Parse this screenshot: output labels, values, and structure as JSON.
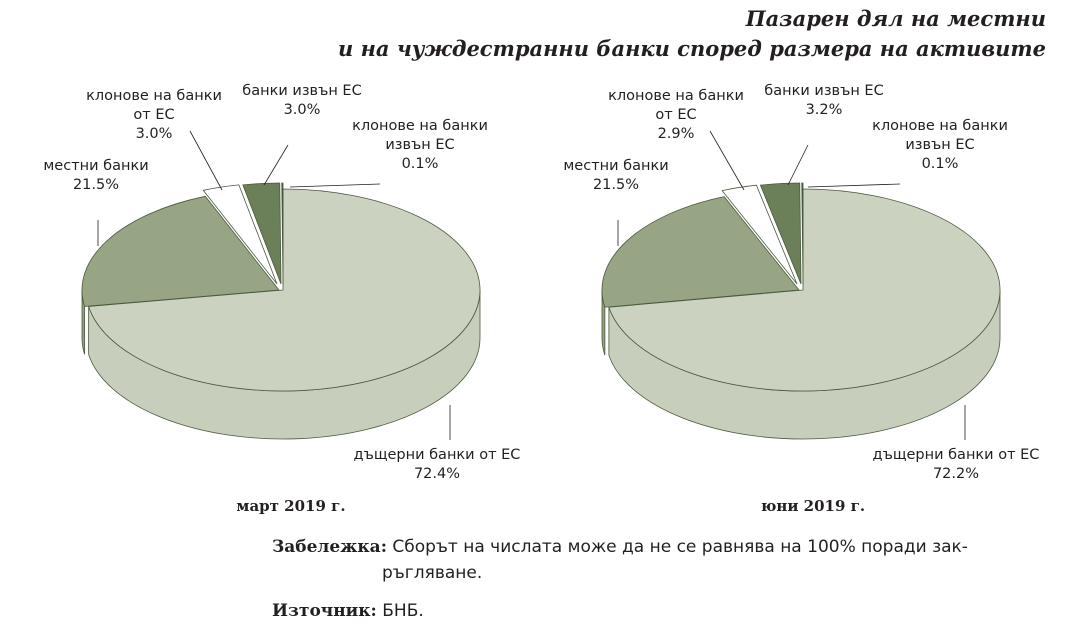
{
  "title_line1": "Пазарен дял на местни",
  "title_line2": "и на чуждестранни банки според размера на активите",
  "colors": {
    "subsidiaries": "#cbd3c0",
    "local": "#97a584",
    "branches_eu": "#ffffff",
    "outside_eu": "#6b8059",
    "branches_outside_eu": "#3f5233",
    "outline": "#4a5a3e"
  },
  "chart_data": [
    {
      "type": "pie",
      "title": "март 2019 г.",
      "slices": [
        {
          "label_lines": [
            "дъщерни банки от ЕС"
          ],
          "pct_label": "72.4%",
          "value": 72.4,
          "color_key": "subsidiaries"
        },
        {
          "label_lines": [
            "местни банки"
          ],
          "pct_label": "21.5%",
          "value": 21.5,
          "color_key": "local"
        },
        {
          "label_lines": [
            "клонове на банки",
            "от ЕС"
          ],
          "pct_label": "3.0%",
          "value": 3.0,
          "color_key": "branches_eu"
        },
        {
          "label_lines": [
            "банки извън ЕС"
          ],
          "pct_label": "3.0%",
          "value": 3.0,
          "color_key": "outside_eu"
        },
        {
          "label_lines": [
            "клонове на банки",
            "извън ЕС"
          ],
          "pct_label": "0.1%",
          "value": 0.1,
          "color_key": "branches_outside_eu"
        }
      ]
    },
    {
      "type": "pie",
      "title": "юни 2019 г.",
      "slices": [
        {
          "label_lines": [
            "дъщерни банки от ЕС"
          ],
          "pct_label": "72.2%",
          "value": 72.2,
          "color_key": "subsidiaries"
        },
        {
          "label_lines": [
            "местни банки"
          ],
          "pct_label": "21.5%",
          "value": 21.5,
          "color_key": "local"
        },
        {
          "label_lines": [
            "клонове на банки",
            "от ЕС"
          ],
          "pct_label": "2.9%",
          "value": 2.9,
          "color_key": "branches_eu"
        },
        {
          "label_lines": [
            "банки извън ЕС"
          ],
          "pct_label": "3.2%",
          "value": 3.2,
          "color_key": "outside_eu"
        },
        {
          "label_lines": [
            "клонове на банки",
            "извън ЕС"
          ],
          "pct_label": "0.1%",
          "value": 0.1,
          "color_key": "branches_outside_eu"
        }
      ]
    }
  ],
  "note": {
    "label": "Забележка:",
    "text_line1": "Сборът на числата може да не се равнява на 100% поради зак-",
    "text_line2": "ръгляване."
  },
  "source": {
    "label": "Източник:",
    "text": "БНБ."
  }
}
